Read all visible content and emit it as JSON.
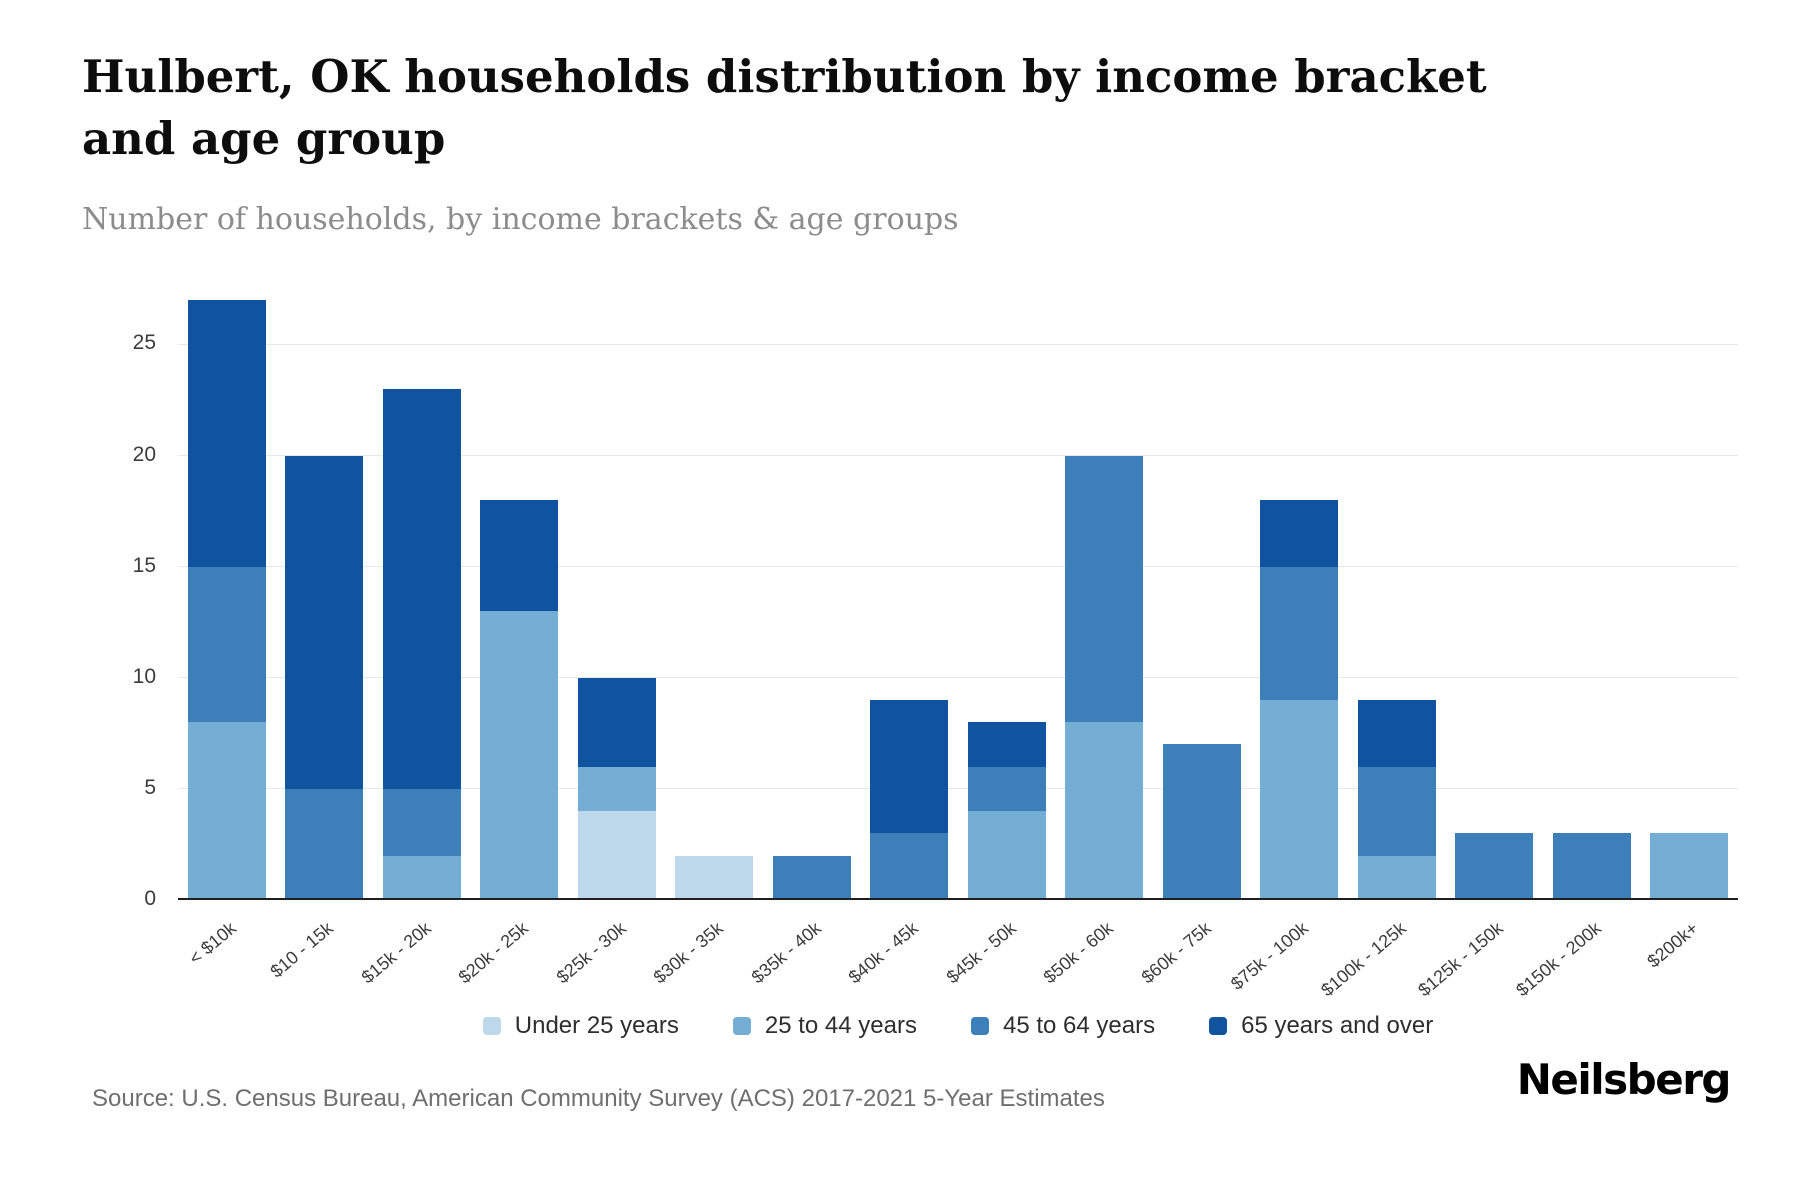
{
  "header": {
    "title": "Hulbert, OK households distribution by income bracket and age group",
    "subtitle": "Number of households, by income brackets & age groups"
  },
  "footer": {
    "source": "Source: U.S. Census Bureau, American Community Survey (ACS) 2017-2021 5-Year Estimates",
    "brand": "Neilsberg"
  },
  "chart_data": {
    "type": "bar",
    "stacked": true,
    "title": "Hulbert, OK households distribution by income bracket and age group",
    "subtitle": "Number of households, by income brackets & age groups",
    "xlabel": "",
    "ylabel": "Number of households",
    "ylim": [
      0,
      27
    ],
    "yticks": [
      0,
      5,
      10,
      15,
      20,
      25
    ],
    "grid": true,
    "legend_position": "bottom",
    "categories": [
      "< $10k",
      "$10 - 15k",
      "$15k - 20k",
      "$20k - 25k",
      "$25k - 30k",
      "$30k - 35k",
      "$35k - 40k",
      "$40k - 45k",
      "$45k - 50k",
      "$50k - 60k",
      "$60k - 75k",
      "$75k - 100k",
      "$100k - 125k",
      "$125k - 150k",
      "$150k - 200k",
      "$200k+"
    ],
    "series": [
      {
        "name": "Under 25 years",
        "color": "#bcd8ea",
        "values": [
          0,
          0,
          0,
          0,
          4,
          2,
          0,
          0,
          0,
          0,
          0,
          0,
          0,
          0,
          0,
          0
        ]
      },
      {
        "name": "25 to 44 years",
        "color": "#74aed4",
        "values": [
          8,
          0,
          2,
          13,
          2,
          0,
          0,
          0,
          4,
          8,
          0,
          9,
          2,
          0,
          0,
          3
        ]
      },
      {
        "name": "45 to 64 years",
        "color": "#3d80b9",
        "values": [
          7,
          5,
          3,
          0,
          0,
          0,
          2,
          3,
          2,
          12,
          7,
          6,
          4,
          3,
          3,
          0
        ]
      },
      {
        "name": "65 years and over",
        "color": "#10539f",
        "values": [
          12,
          15,
          18,
          5,
          4,
          0,
          0,
          6,
          2,
          0,
          0,
          3,
          3,
          0,
          0,
          0
        ]
      }
    ]
  }
}
